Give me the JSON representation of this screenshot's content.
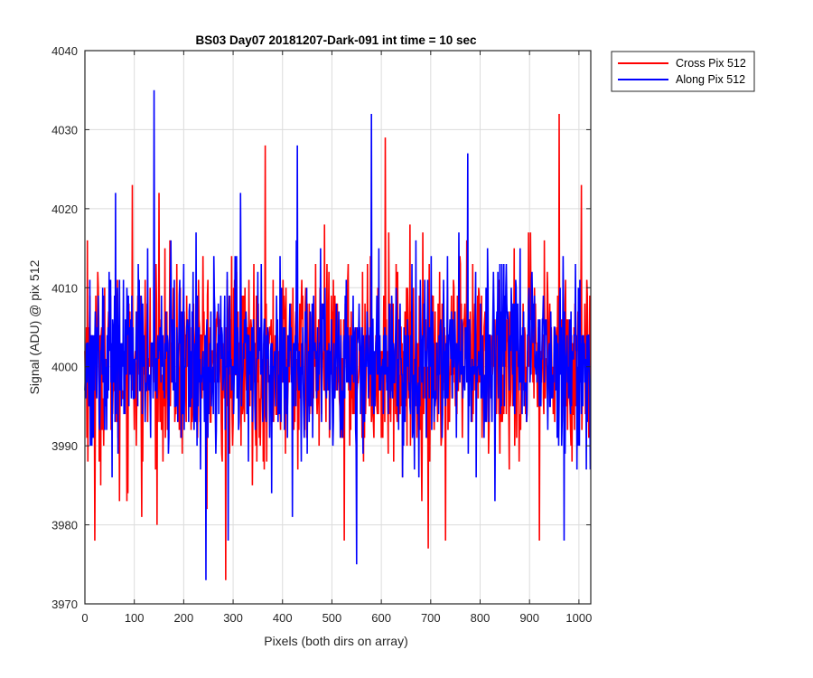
{
  "chart_data": {
    "type": "line",
    "title": "BS03 Day07 20181207-Dark-091 int time = 10 sec",
    "xlabel": "Pixels (both dirs on array)",
    "ylabel": "Signal (ADU) @ pix 512",
    "xlim": [
      0,
      1024
    ],
    "ylim": [
      3970,
      4040
    ],
    "xticks": [
      0,
      100,
      200,
      300,
      400,
      500,
      600,
      700,
      800,
      900,
      1000
    ],
    "yticks": [
      3970,
      3980,
      3990,
      4000,
      4010,
      4020,
      4030,
      4040
    ],
    "grid": true,
    "legend_position": "outside-top-right",
    "series": [
      {
        "name": "Cross Pix 512",
        "color": "#ff0000",
        "mean": 4000.5,
        "std": 6,
        "min": 3973,
        "max": 4032,
        "points": 1024,
        "peaks": [
          [
            5,
            4016
          ],
          [
            20,
            3978
          ],
          [
            70,
            3983
          ],
          [
            96,
            4023
          ],
          [
            115,
            3981
          ],
          [
            150,
            4022
          ],
          [
            285,
            3973
          ],
          [
            365,
            4028
          ],
          [
            525,
            3978
          ],
          [
            608,
            4029
          ],
          [
            695,
            3977
          ],
          [
            730,
            3978
          ],
          [
            920,
            3978
          ],
          [
            960,
            4032
          ],
          [
            1005,
            4023
          ]
        ]
      },
      {
        "name": "Along Pix 512",
        "color": "#0000ff",
        "mean": 4001,
        "std": 5.5,
        "min": 3973,
        "max": 4035,
        "points": 1024,
        "peaks": [
          [
            62,
            4022
          ],
          [
            140,
            4035
          ],
          [
            225,
            4017
          ],
          [
            245,
            3973
          ],
          [
            290,
            3978
          ],
          [
            315,
            4022
          ],
          [
            430,
            4028
          ],
          [
            420,
            3981
          ],
          [
            550,
            3975
          ],
          [
            580,
            4032
          ],
          [
            775,
            4027
          ],
          [
            830,
            3983
          ],
          [
            970,
            3978
          ]
        ]
      }
    ]
  }
}
